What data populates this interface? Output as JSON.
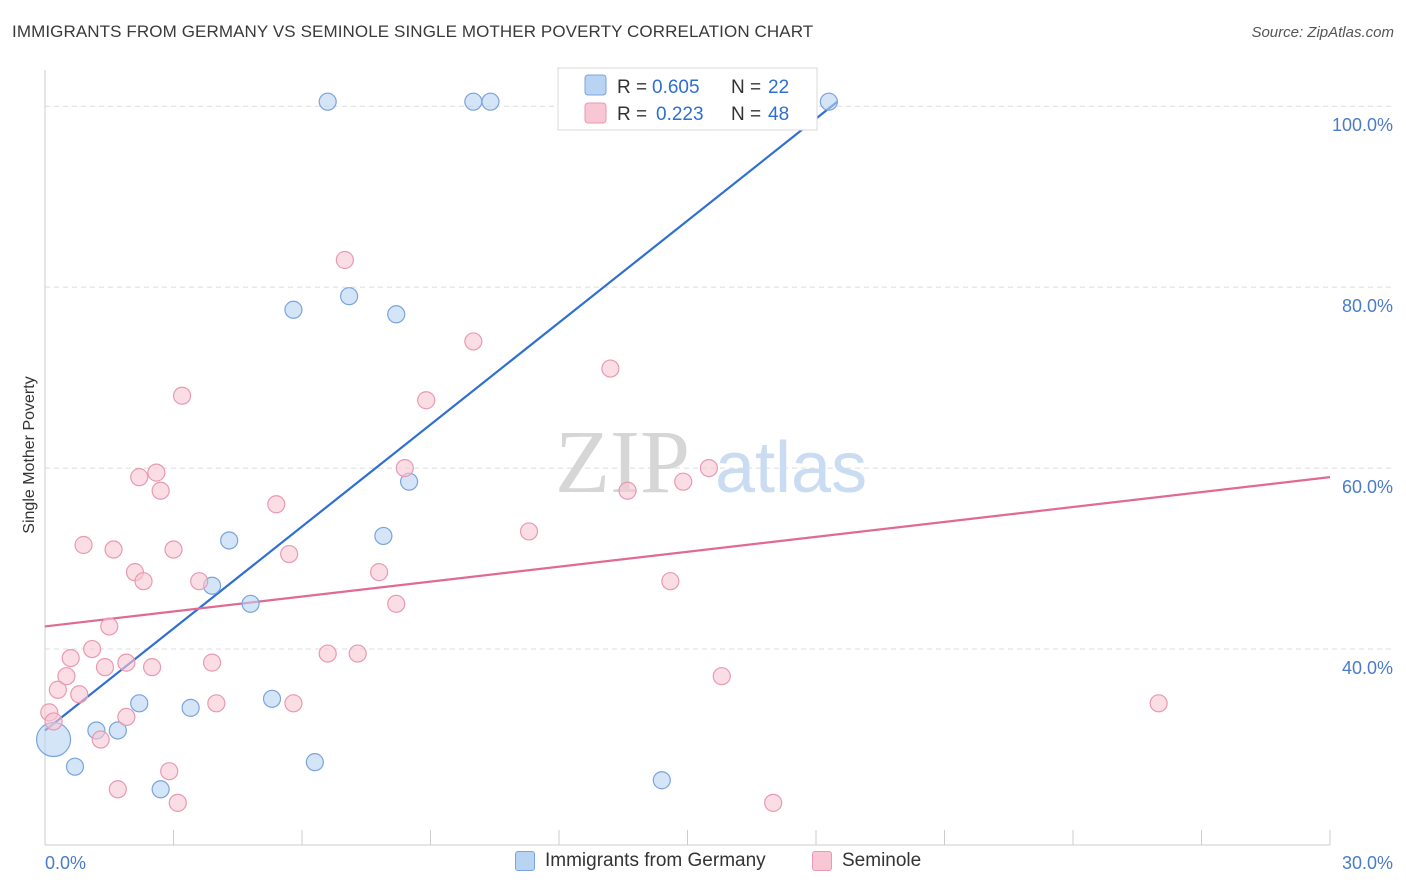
{
  "title": "IMMIGRANTS FROM GERMANY VS SEMINOLE SINGLE MOTHER POVERTY CORRELATION CHART",
  "source": "Source: ZipAtlas.com",
  "watermark": {
    "zip": "ZIP",
    "atlas": "atlas"
  },
  "colors": {
    "blue_fill": "#b9d3f3",
    "blue_stroke": "#7aa4dc",
    "blue_line": "#2f6fd1",
    "pink_fill": "#f8c6d4",
    "pink_stroke": "#e89ab1",
    "pink_line": "#e06a92",
    "tick_text": "#4a7cc9",
    "grid": "#dcdcdc"
  },
  "legend": {
    "r_label": "R =",
    "n_label": "N =",
    "series": [
      {
        "r": "0.605",
        "n": "22"
      },
      {
        "r": "0.223",
        "n": "48"
      }
    ]
  },
  "chart_data": {
    "type": "scatter",
    "title": "IMMIGRANTS FROM GERMANY VS SEMINOLE SINGLE MOTHER POVERTY CORRELATION CHART",
    "xlabel": "",
    "ylabel": "Single Mother Poverty",
    "xlim": [
      0,
      30
    ],
    "ylim": [
      20,
      104
    ],
    "x_tick_labels": [
      "0.0%",
      "30.0%"
    ],
    "y_ticks": [
      40,
      60,
      80,
      100
    ],
    "y_tick_labels": [
      "40.0%",
      "60.0%",
      "80.0%",
      "100.0%"
    ],
    "series": [
      {
        "name": "Immigrants from Germany",
        "color": "blue",
        "trend": {
          "x": [
            0.0,
            18.5
          ],
          "y": [
            31.0,
            100.5
          ]
        },
        "points": [
          {
            "x": 0.2,
            "y": 30.0,
            "big": true
          },
          {
            "x": 0.7,
            "y": 27.0
          },
          {
            "x": 1.2,
            "y": 31.0
          },
          {
            "x": 1.7,
            "y": 31.0
          },
          {
            "x": 2.2,
            "y": 34.0
          },
          {
            "x": 2.7,
            "y": 24.5
          },
          {
            "x": 3.4,
            "y": 33.5
          },
          {
            "x": 3.9,
            "y": 47.0
          },
          {
            "x": 4.3,
            "y": 52.0
          },
          {
            "x": 4.8,
            "y": 45.0
          },
          {
            "x": 5.3,
            "y": 34.5
          },
          {
            "x": 5.8,
            "y": 77.5
          },
          {
            "x": 6.3,
            "y": 27.5
          },
          {
            "x": 6.6,
            "y": 100.5
          },
          {
            "x": 7.1,
            "y": 79.0
          },
          {
            "x": 7.9,
            "y": 52.5
          },
          {
            "x": 8.2,
            "y": 77.0
          },
          {
            "x": 8.5,
            "y": 58.5
          },
          {
            "x": 10.0,
            "y": 100.5
          },
          {
            "x": 10.4,
            "y": 100.5
          },
          {
            "x": 14.4,
            "y": 25.5
          },
          {
            "x": 18.3,
            "y": 100.5
          }
        ]
      },
      {
        "name": "Seminole",
        "color": "pink",
        "trend": {
          "x": [
            0.0,
            30.0
          ],
          "y": [
            42.5,
            59.0
          ]
        },
        "points": [
          {
            "x": 0.1,
            "y": 33.0
          },
          {
            "x": 0.2,
            "y": 32.0
          },
          {
            "x": 0.3,
            "y": 35.5
          },
          {
            "x": 0.5,
            "y": 37.0
          },
          {
            "x": 0.6,
            "y": 39.0
          },
          {
            "x": 0.8,
            "y": 35.0
          },
          {
            "x": 0.9,
            "y": 51.5
          },
          {
            "x": 1.1,
            "y": 40.0
          },
          {
            "x": 1.3,
            "y": 30.0
          },
          {
            "x": 1.4,
            "y": 38.0
          },
          {
            "x": 1.5,
            "y": 42.5
          },
          {
            "x": 1.6,
            "y": 51.0
          },
          {
            "x": 1.7,
            "y": 24.5
          },
          {
            "x": 1.9,
            "y": 32.5
          },
          {
            "x": 1.9,
            "y": 38.5
          },
          {
            "x": 2.1,
            "y": 48.5
          },
          {
            "x": 2.2,
            "y": 59.0
          },
          {
            "x": 2.3,
            "y": 47.5
          },
          {
            "x": 2.5,
            "y": 38.0
          },
          {
            "x": 2.6,
            "y": 59.5
          },
          {
            "x": 2.7,
            "y": 57.5
          },
          {
            "x": 2.9,
            "y": 26.5
          },
          {
            "x": 3.0,
            "y": 51.0
          },
          {
            "x": 3.1,
            "y": 23.0
          },
          {
            "x": 3.2,
            "y": 68.0
          },
          {
            "x": 3.6,
            "y": 47.5
          },
          {
            "x": 3.9,
            "y": 38.5
          },
          {
            "x": 4.0,
            "y": 34.0
          },
          {
            "x": 5.4,
            "y": 56.0
          },
          {
            "x": 5.7,
            "y": 50.5
          },
          {
            "x": 5.8,
            "y": 34.0
          },
          {
            "x": 6.6,
            "y": 39.5
          },
          {
            "x": 7.0,
            "y": 83.0
          },
          {
            "x": 7.3,
            "y": 39.5
          },
          {
            "x": 7.8,
            "y": 48.5
          },
          {
            "x": 8.2,
            "y": 45.0
          },
          {
            "x": 8.4,
            "y": 60.0
          },
          {
            "x": 8.9,
            "y": 67.5
          },
          {
            "x": 10.0,
            "y": 74.0
          },
          {
            "x": 11.3,
            "y": 53.0
          },
          {
            "x": 13.2,
            "y": 71.0
          },
          {
            "x": 13.6,
            "y": 57.5
          },
          {
            "x": 14.6,
            "y": 47.5
          },
          {
            "x": 14.9,
            "y": 58.5
          },
          {
            "x": 15.5,
            "y": 60.0
          },
          {
            "x": 15.8,
            "y": 37.0
          },
          {
            "x": 17.0,
            "y": 23.0
          },
          {
            "x": 26.0,
            "y": 34.0
          }
        ]
      }
    ]
  }
}
